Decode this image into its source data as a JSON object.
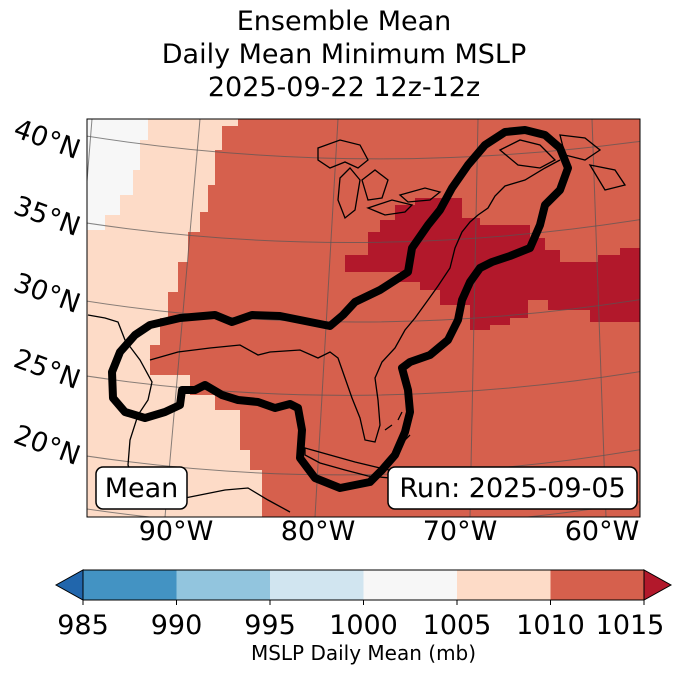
{
  "title": {
    "line1": "Ensemble Mean",
    "line2": "Daily Mean Minimum MSLP",
    "line3": "2025-09-22 12z-12z"
  },
  "map": {
    "lat_labels": [
      "40°N",
      "35°N",
      "30°N",
      "25°N",
      "20°N"
    ],
    "lon_labels": [
      "90°W",
      "80°W",
      "70°W",
      "60°W"
    ],
    "mean_box": "Mean",
    "run_box": "Run: 2025-09-05",
    "field_colors": {
      "bin_1000_1005": "#f7f7f7",
      "bin_1005_1010": "#fddbc7",
      "bin_1010_1015": "#d6604d",
      "bin_1015_plus": "#b2182b"
    },
    "contour_color": "#000000"
  },
  "colorbar": {
    "label": "MSLP Daily Mean (mb)",
    "ticks": [
      "985",
      "990",
      "995",
      "1000",
      "1005",
      "1010",
      "1015"
    ],
    "colors": [
      "#4393c3",
      "#92c5de",
      "#d1e5f0",
      "#f7f7f7",
      "#fddbc7",
      "#d6604d"
    ],
    "under_color": "#2166ac",
    "over_color": "#b2182b"
  }
}
